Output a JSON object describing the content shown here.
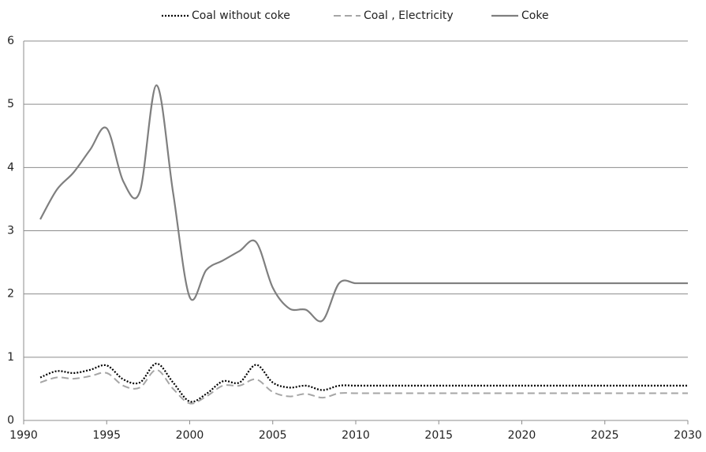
{
  "chart_data": {
    "type": "line",
    "x": [
      1991,
      1992,
      1993,
      1994,
      1995,
      1996,
      1997,
      1998,
      1999,
      2000,
      2001,
      2002,
      2003,
      2004,
      2005,
      2006,
      2007,
      2008,
      2009,
      2010,
      2011,
      2012,
      2013,
      2014,
      2015,
      2016,
      2017,
      2018,
      2019,
      2020,
      2021,
      2022,
      2023,
      2024,
      2025,
      2026,
      2027,
      2028,
      2029,
      2030
    ],
    "series": [
      {
        "name": "Coal without coke",
        "color": "#000000",
        "dash": "dotted",
        "values": [
          0.68,
          0.78,
          0.75,
          0.8,
          0.87,
          0.65,
          0.6,
          0.9,
          0.6,
          0.3,
          0.42,
          0.62,
          0.6,
          0.88,
          0.6,
          0.52,
          0.55,
          0.48,
          0.55,
          0.55,
          0.55,
          0.55,
          0.55,
          0.55,
          0.55,
          0.55,
          0.55,
          0.55,
          0.55,
          0.55,
          0.55,
          0.55,
          0.55,
          0.55,
          0.55,
          0.55,
          0.55,
          0.55,
          0.55,
          0.55
        ]
      },
      {
        "name": "Coal , Electricity",
        "color": "#a6a6a6",
        "dash": "dashed",
        "values": [
          0.6,
          0.68,
          0.66,
          0.7,
          0.75,
          0.55,
          0.52,
          0.8,
          0.5,
          0.27,
          0.38,
          0.55,
          0.55,
          0.65,
          0.45,
          0.38,
          0.42,
          0.36,
          0.43,
          0.43,
          0.43,
          0.43,
          0.43,
          0.43,
          0.43,
          0.43,
          0.43,
          0.43,
          0.43,
          0.43,
          0.43,
          0.43,
          0.43,
          0.43,
          0.43,
          0.43,
          0.43,
          0.43,
          0.43,
          0.43
        ]
      },
      {
        "name": "Coke",
        "color": "#7f7f7f",
        "dash": "solid",
        "values": [
          3.18,
          3.65,
          3.92,
          4.28,
          4.62,
          3.78,
          3.62,
          5.3,
          3.6,
          1.95,
          2.38,
          2.53,
          2.68,
          2.82,
          2.1,
          1.77,
          1.75,
          1.58,
          2.17,
          2.17,
          2.17,
          2.17,
          2.17,
          2.17,
          2.17,
          2.17,
          2.17,
          2.17,
          2.17,
          2.17,
          2.17,
          2.17,
          2.17,
          2.17,
          2.17,
          2.17,
          2.17,
          2.17,
          2.17,
          2.17
        ]
      }
    ],
    "xlim": [
      1990,
      2030
    ],
    "xticks": [
      1990,
      1995,
      2000,
      2005,
      2010,
      2015,
      2020,
      2025,
      2030
    ],
    "ylim": [
      0,
      6
    ],
    "yticks": [
      0,
      1,
      2,
      3,
      4,
      5,
      6
    ],
    "grid": true,
    "legend": "top"
  }
}
